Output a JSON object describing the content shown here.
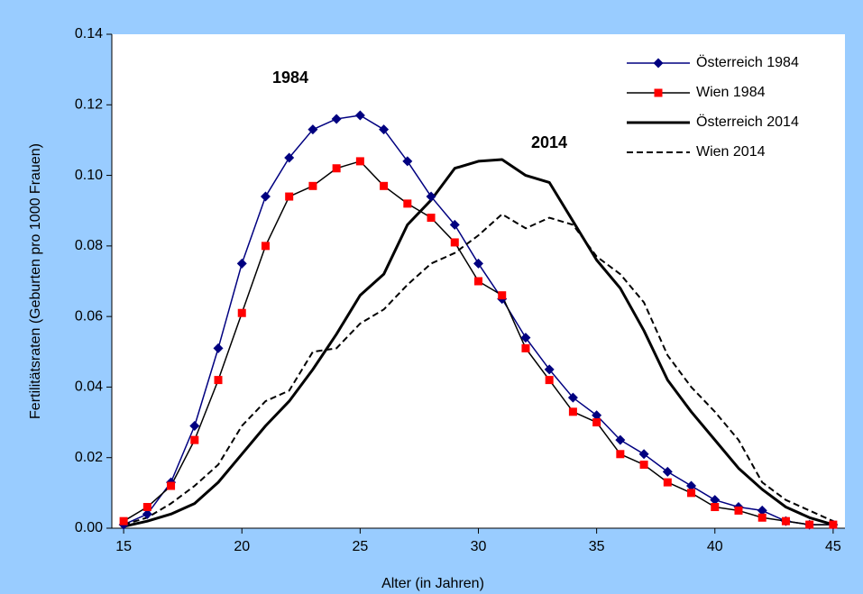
{
  "chart_data": {
    "type": "line",
    "xlabel": "Alter (in Jahren)",
    "ylabel": "Fertilitätsraten (Geburten pro 1000 Frauen)",
    "annotations": [
      "1984",
      "2014"
    ],
    "x": [
      15,
      16,
      17,
      18,
      19,
      20,
      21,
      22,
      23,
      24,
      25,
      26,
      27,
      28,
      29,
      30,
      31,
      32,
      33,
      34,
      35,
      36,
      37,
      38,
      39,
      40,
      41,
      42,
      43,
      44,
      45
    ],
    "xlim": [
      14.5,
      45.5
    ],
    "xticks": [
      15,
      20,
      25,
      30,
      35,
      40,
      45
    ],
    "ylim": [
      0,
      0.14
    ],
    "yticks": [
      {
        "value": 0,
        "label": "0.00"
      },
      0.02,
      0.04,
      0.06,
      0.08,
      {
        "value": 0.1,
        "label": "0.10"
      },
      0.12,
      0.14
    ],
    "legend": "upper right",
    "series": [
      {
        "name": "Österreich 1984",
        "color": "#000080",
        "marker": "diamond",
        "marker_color": "#000080",
        "linestyle": "solid",
        "linewidth": 1.5,
        "values": [
          0.001,
          0.004,
          0.013,
          0.029,
          0.051,
          0.075,
          0.094,
          0.105,
          0.113,
          0.116,
          0.117,
          0.113,
          0.104,
          0.094,
          0.086,
          0.075,
          0.065,
          0.054,
          0.045,
          0.037,
          0.032,
          0.025,
          0.021,
          0.016,
          0.012,
          0.008,
          0.006,
          0.005,
          0.002,
          0.001,
          0.001
        ]
      },
      {
        "name": "Wien 1984",
        "color": "#000000",
        "marker": "square",
        "marker_color": "#ff0000",
        "linestyle": "solid",
        "linewidth": 1.5,
        "values": [
          0.002,
          0.006,
          0.012,
          0.025,
          0.042,
          0.061,
          0.08,
          0.094,
          0.097,
          0.102,
          0.104,
          0.097,
          0.092,
          0.088,
          0.081,
          0.07,
          0.066,
          0.051,
          0.042,
          0.033,
          0.03,
          0.021,
          0.018,
          0.013,
          0.01,
          0.006,
          0.005,
          0.003,
          0.002,
          0.001,
          0.001
        ]
      },
      {
        "name": "Österreich 2014",
        "color": "#000000",
        "linestyle": "solid",
        "linewidth": 3,
        "values": [
          0.0005,
          0.002,
          0.004,
          0.007,
          0.013,
          0.021,
          0.029,
          0.036,
          0.045,
          0.055,
          0.066,
          0.072,
          0.086,
          0.093,
          0.102,
          0.104,
          0.1045,
          0.1,
          0.098,
          0.087,
          0.076,
          0.068,
          0.056,
          0.042,
          0.033,
          0.025,
          0.017,
          0.011,
          0.006,
          0.003,
          0.001
        ]
      },
      {
        "name": "Wien 2014",
        "color": "#000000",
        "linestyle": "dashed",
        "linewidth": 2,
        "values": [
          0.001,
          0.003,
          0.007,
          0.012,
          0.018,
          0.029,
          0.036,
          0.039,
          0.05,
          0.051,
          0.058,
          0.062,
          0.069,
          0.075,
          0.078,
          0.083,
          0.089,
          0.085,
          0.088,
          0.086,
          0.077,
          0.072,
          0.064,
          0.049,
          0.04,
          0.033,
          0.025,
          0.013,
          0.008,
          0.005,
          0.002
        ]
      }
    ]
  }
}
